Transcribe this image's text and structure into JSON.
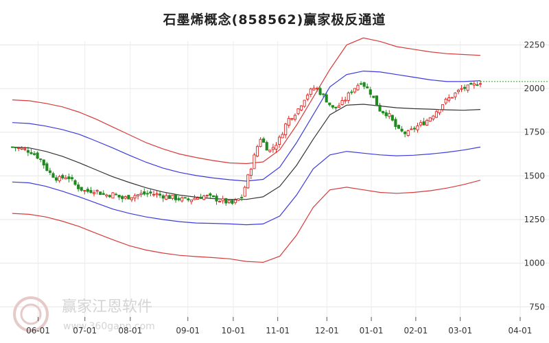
{
  "chart_data": {
    "type": "candlestick-channel",
    "title": "石墨烯概念(858562)赢家极反通道",
    "ylim": [
      700,
      2350
    ],
    "y_ticks": [
      750,
      1000,
      1250,
      1500,
      1750,
      2000,
      2250
    ],
    "x_ticks": [
      "06-01",
      "07-01",
      "08-01",
      "09-01",
      "10-01",
      "11-01",
      "12-01",
      "01-01",
      "02-01",
      "03-01",
      "04-01"
    ],
    "last_price_line": 2040,
    "up_color": "#e0201b",
    "down_color": "#1f8a1f",
    "grid": true,
    "series": [
      {
        "role": "outer-upper",
        "color": "#d83a3a",
        "values": [
          1935,
          1930,
          1915,
          1895,
          1865,
          1825,
          1780,
          1735,
          1690,
          1655,
          1625,
          1605,
          1588,
          1574,
          1570,
          1580,
          1650,
          1790,
          1950,
          2110,
          2250,
          2290,
          2270,
          2240,
          2225,
          2210,
          2200,
          2195,
          2190
        ]
      },
      {
        "role": "inner-upper",
        "color": "#3a3ae0",
        "values": [
          1805,
          1800,
          1785,
          1765,
          1738,
          1700,
          1660,
          1618,
          1578,
          1545,
          1520,
          1502,
          1488,
          1478,
          1470,
          1480,
          1550,
          1690,
          1850,
          2010,
          2080,
          2100,
          2095,
          2080,
          2065,
          2050,
          2040,
          2040,
          2045
        ]
      },
      {
        "role": "middle",
        "color": "#333333",
        "values": [
          1665,
          1660,
          1640,
          1612,
          1575,
          1535,
          1495,
          1462,
          1432,
          1408,
          1390,
          1378,
          1370,
          1365,
          1365,
          1380,
          1440,
          1560,
          1710,
          1850,
          1905,
          1910,
          1900,
          1890,
          1885,
          1882,
          1878,
          1876,
          1880
        ]
      },
      {
        "role": "inner-lower",
        "color": "#3a3ae0",
        "values": [
          1465,
          1460,
          1440,
          1412,
          1380,
          1345,
          1310,
          1285,
          1265,
          1250,
          1238,
          1230,
          1228,
          1225,
          1220,
          1225,
          1270,
          1390,
          1540,
          1620,
          1640,
          1630,
          1620,
          1615,
          1618,
          1625,
          1635,
          1648,
          1665
        ]
      },
      {
        "role": "outer-lower",
        "color": "#d83a3a",
        "values": [
          1285,
          1280,
          1265,
          1240,
          1210,
          1172,
          1135,
          1100,
          1075,
          1058,
          1045,
          1038,
          1032,
          1025,
          1010,
          1005,
          1040,
          1160,
          1320,
          1420,
          1435,
          1420,
          1405,
          1400,
          1405,
          1415,
          1430,
          1450,
          1475
        ]
      }
    ],
    "close_path": [
      1665,
      1655,
      1640,
      1600,
      1520,
      1480,
      1500,
      1440,
      1410,
      1420,
      1390,
      1395,
      1370,
      1385,
      1395,
      1400,
      1390,
      1380,
      1370,
      1360,
      1375,
      1385,
      1370,
      1355,
      1340,
      1380,
      1550,
      1720,
      1640,
      1700,
      1820,
      1870,
      1960,
      2010,
      1950,
      1880,
      1920,
      1990,
      2040,
      1980,
      1880,
      1850,
      1760,
      1740,
      1780,
      1810,
      1860,
      1920,
      1960,
      2000,
      2010,
      2040
    ],
    "watermark": {
      "brand": "赢家江恩软件",
      "url": "www.360gann.com"
    }
  }
}
